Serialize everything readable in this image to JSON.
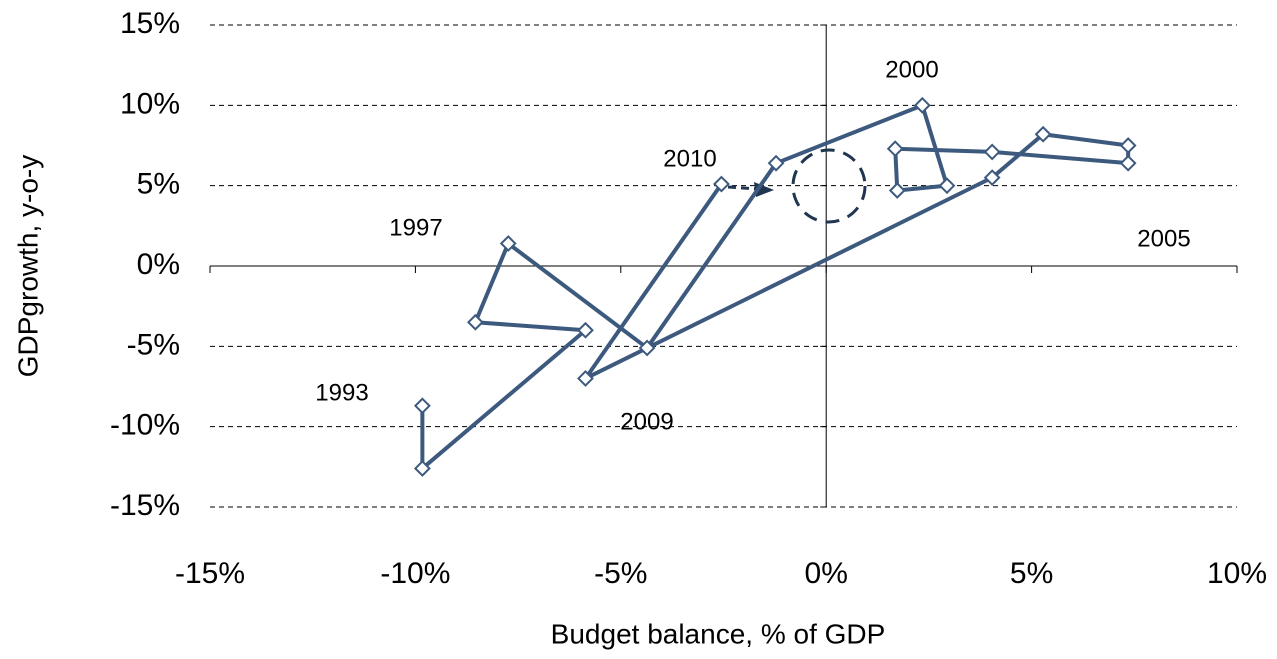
{
  "chart_data": {
    "type": "scatter",
    "x_label": "Budget balance, % of GDP",
    "y_label": "GDPgrowth, y-o-y",
    "xlim": [
      -15,
      10
    ],
    "ylim": [
      -15,
      15
    ],
    "xticks": [
      {
        "value": -15,
        "label": "-15%"
      },
      {
        "value": -10,
        "label": "-10%"
      },
      {
        "value": -5,
        "label": "-5%"
      },
      {
        "value": 0,
        "label": "0%"
      },
      {
        "value": 5,
        "label": "5%"
      },
      {
        "value": 10,
        "label": "10%"
      }
    ],
    "yticks": [
      {
        "value": -15,
        "label": "-15%"
      },
      {
        "value": -10,
        "label": "-10%"
      },
      {
        "value": -5,
        "label": "-5%"
      },
      {
        "value": 0,
        "label": "0%"
      },
      {
        "value": 5,
        "label": "5%"
      },
      {
        "value": 10,
        "label": "10%"
      },
      {
        "value": 15,
        "label": "15%"
      }
    ],
    "grid": true,
    "color": "#3d5a7e",
    "x": [
      -9.83,
      -9.83,
      -5.86,
      -8.54,
      -7.74,
      -4.36,
      -1.22,
      2.34,
      2.94,
      1.73,
      1.68,
      4.04,
      7.35,
      7.35,
      5.28,
      4.04,
      -5.86,
      -2.55
    ],
    "values": [
      -8.7,
      -12.6,
      -4.0,
      -3.5,
      1.4,
      -5.1,
      6.4,
      10.0,
      5.0,
      4.7,
      7.3,
      7.1,
      6.4,
      7.5,
      8.2,
      5.5,
      -7.0,
      5.1
    ],
    "annotations": [
      "1993",
      "1997",
      "2000",
      "2005",
      "2009",
      "2010"
    ]
  }
}
